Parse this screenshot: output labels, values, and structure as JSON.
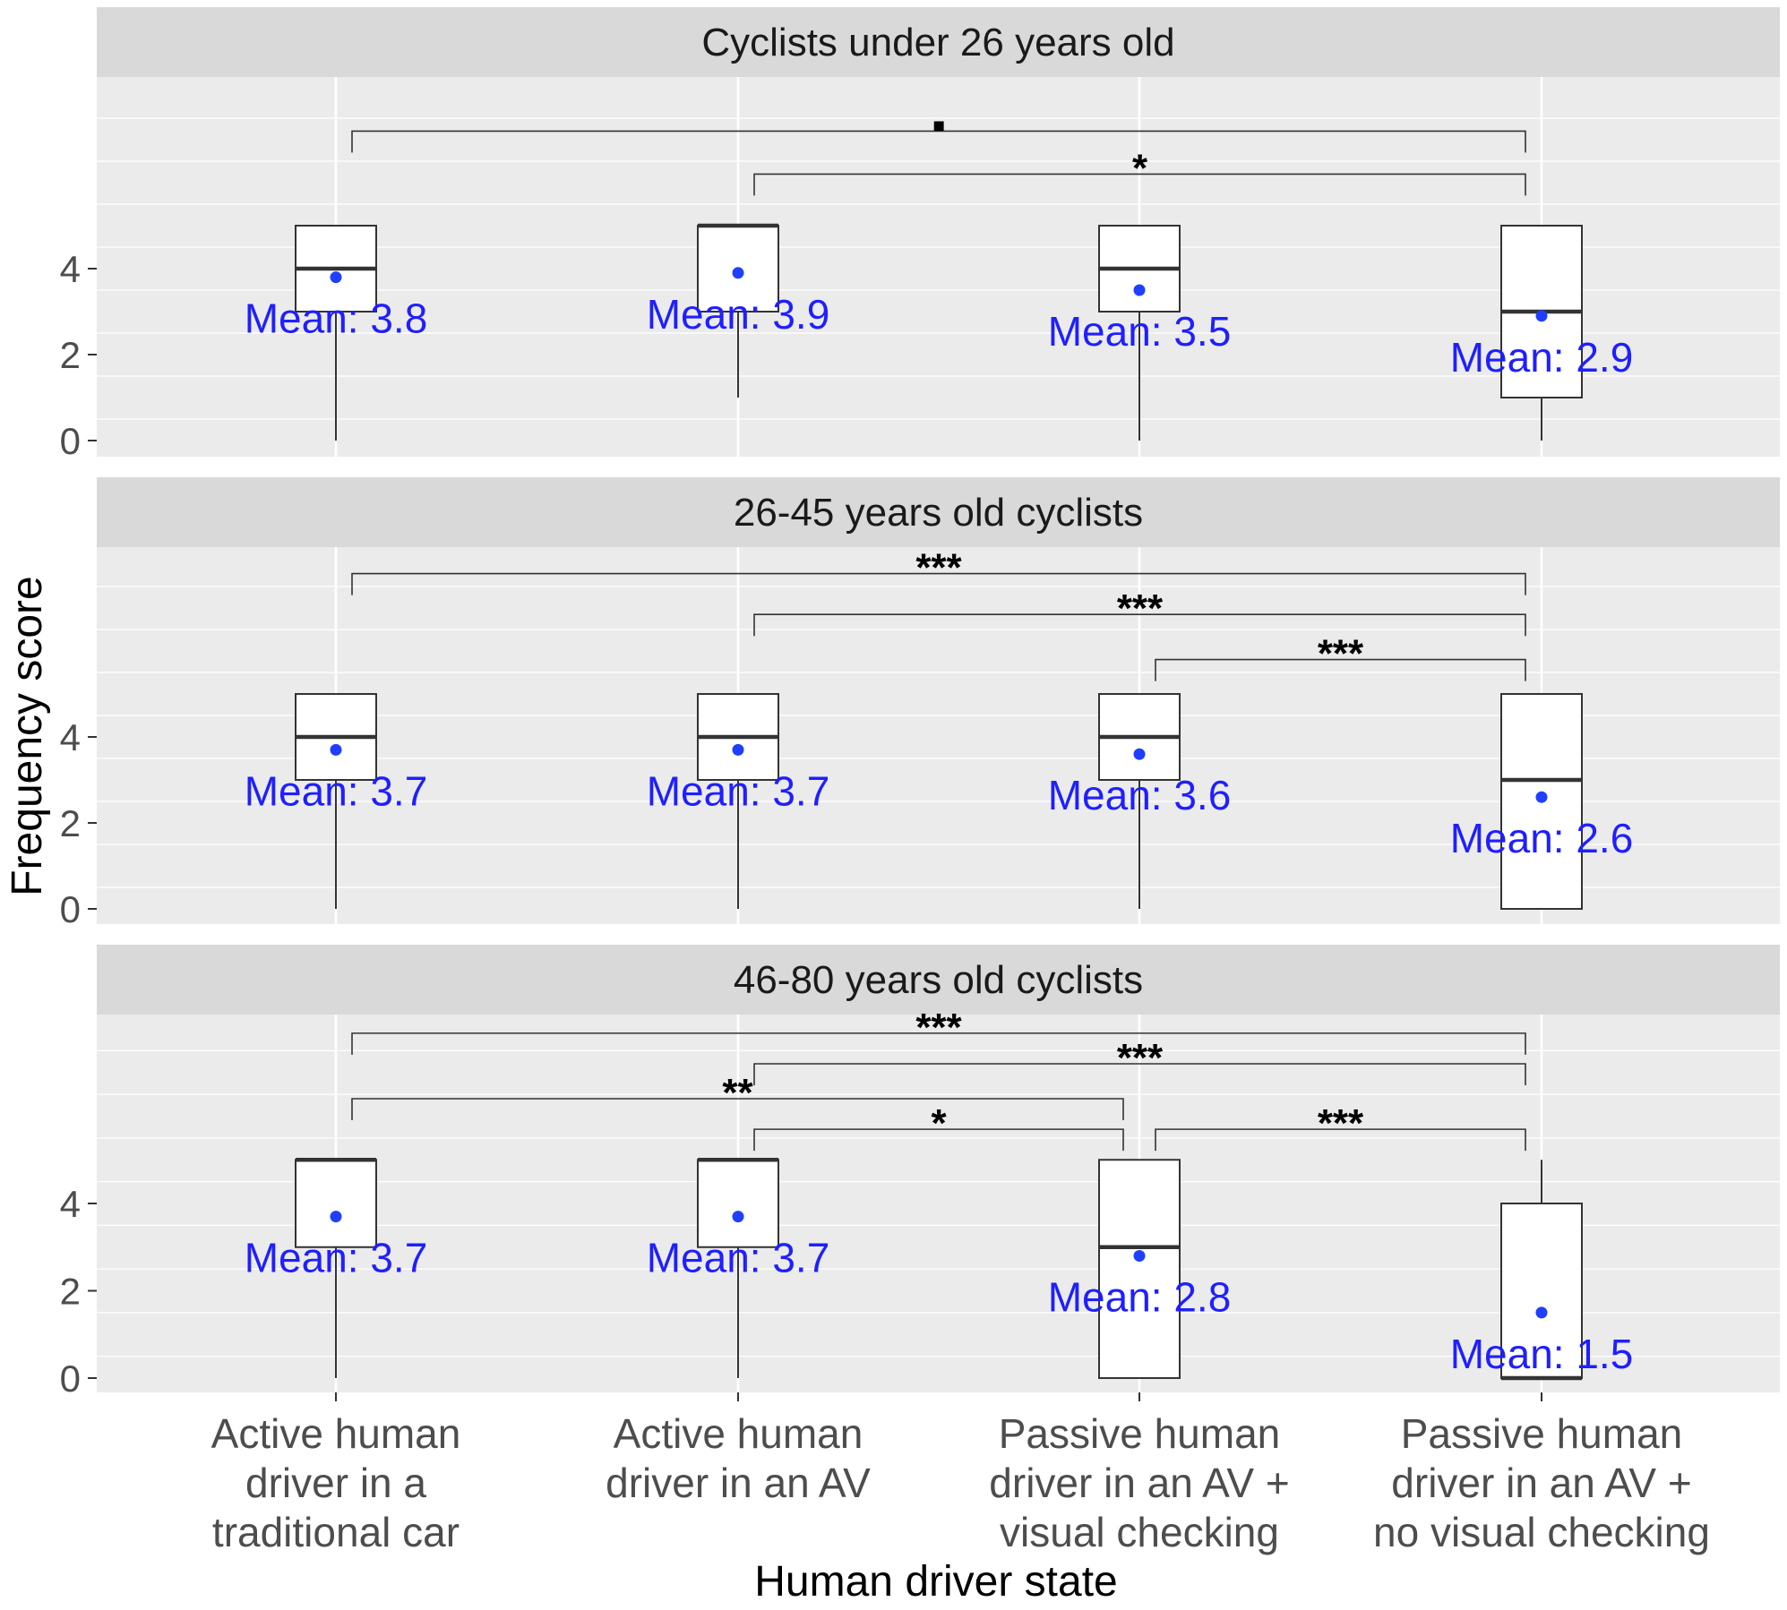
{
  "chart_data": {
    "type": "boxplot",
    "xlabel": "Human driver state",
    "ylabel": "Frequency score",
    "ylim": [
      0,
      5
    ],
    "y_ticks": [
      0,
      2,
      4
    ],
    "grid": true,
    "mean_marker_color": "#1f3fff",
    "mean_label_color": "#1f1fff",
    "panel_background": "#ebebeb",
    "strip_background": "#d9d9d9",
    "categories": [
      [
        "Active human",
        "driver in a",
        "traditional car"
      ],
      [
        "Active human",
        "driver in an AV"
      ],
      [
        "Passive human",
        "driver in an AV +",
        "visual checking"
      ],
      [
        "Passive human",
        "driver in an AV +",
        "no visual checking"
      ]
    ],
    "panels": [
      {
        "title": "Cyclists under 26 years old",
        "boxes": [
          {
            "whisker_low": 0,
            "q1": 3,
            "median": 4,
            "q3": 5,
            "whisker_high": 5,
            "mean": 3.8,
            "mean_label": "Mean: 3.8"
          },
          {
            "whisker_low": 1,
            "q1": 3,
            "median": 5,
            "q3": 5,
            "whisker_high": 5,
            "mean": 3.9,
            "mean_label": "Mean: 3.9"
          },
          {
            "whisker_low": 0,
            "q1": 3,
            "median": 4,
            "q3": 5,
            "whisker_high": 5,
            "mean": 3.5,
            "mean_label": "Mean: 3.5"
          },
          {
            "whisker_low": 0,
            "q1": 1,
            "median": 3,
            "q3": 5,
            "whisker_high": 5,
            "mean": 2.9,
            "mean_label": "Mean: 2.9"
          }
        ],
        "comparisons": [
          {
            "from": 0,
            "to": 3,
            "label": "▪",
            "level": 7.2
          },
          {
            "from": 1,
            "to": 3,
            "label": "*",
            "level": 6.2
          }
        ]
      },
      {
        "title": "26-45 years old cyclists",
        "boxes": [
          {
            "whisker_low": 0,
            "q1": 3,
            "median": 4,
            "q3": 5,
            "whisker_high": 5,
            "mean": 3.7,
            "mean_label": "Mean: 3.7"
          },
          {
            "whisker_low": 0,
            "q1": 3,
            "median": 4,
            "q3": 5,
            "whisker_high": 5,
            "mean": 3.7,
            "mean_label": "Mean: 3.7"
          },
          {
            "whisker_low": 0,
            "q1": 3,
            "median": 4,
            "q3": 5,
            "whisker_high": 5,
            "mean": 3.6,
            "mean_label": "Mean: 3.6"
          },
          {
            "whisker_low": 0,
            "q1": 0,
            "median": 3,
            "q3": 5,
            "whisker_high": 5,
            "mean": 2.6,
            "mean_label": "Mean: 2.6"
          }
        ],
        "comparisons": [
          {
            "from": 0,
            "to": 3,
            "label": "***",
            "level": 7.8
          },
          {
            "from": 1,
            "to": 3,
            "label": "***",
            "level": 6.85
          },
          {
            "from": 2,
            "to": 3,
            "label": "***",
            "level": 5.8
          }
        ]
      },
      {
        "title": "46-80 years old cyclists",
        "boxes": [
          {
            "whisker_low": 0,
            "q1": 3,
            "median": 5,
            "q3": 5,
            "whisker_high": 5,
            "mean": 3.7,
            "mean_label": "Mean: 3.7"
          },
          {
            "whisker_low": 0,
            "q1": 3,
            "median": 5,
            "q3": 5,
            "whisker_high": 5,
            "mean": 3.7,
            "mean_label": "Mean: 3.7"
          },
          {
            "whisker_low": 0,
            "q1": 0,
            "median": 3,
            "q3": 5,
            "whisker_high": 5,
            "mean": 2.8,
            "mean_label": "Mean: 2.8"
          },
          {
            "whisker_low": 0,
            "q1": 0,
            "median": 0,
            "q3": 4,
            "whisker_high": 5,
            "mean": 1.5,
            "mean_label": "Mean: 1.5"
          }
        ],
        "comparisons": [
          {
            "from": 0,
            "to": 3,
            "label": "***",
            "level": 7.9
          },
          {
            "from": 1,
            "to": 3,
            "label": "***",
            "level": 7.2
          },
          {
            "from": 0,
            "to": 2,
            "label": "**",
            "level": 6.4
          },
          {
            "from": 1,
            "to": 2,
            "label": "*",
            "level": 5.7
          },
          {
            "from": 2,
            "to": 3,
            "label": "***",
            "level": 5.7
          }
        ]
      }
    ]
  }
}
